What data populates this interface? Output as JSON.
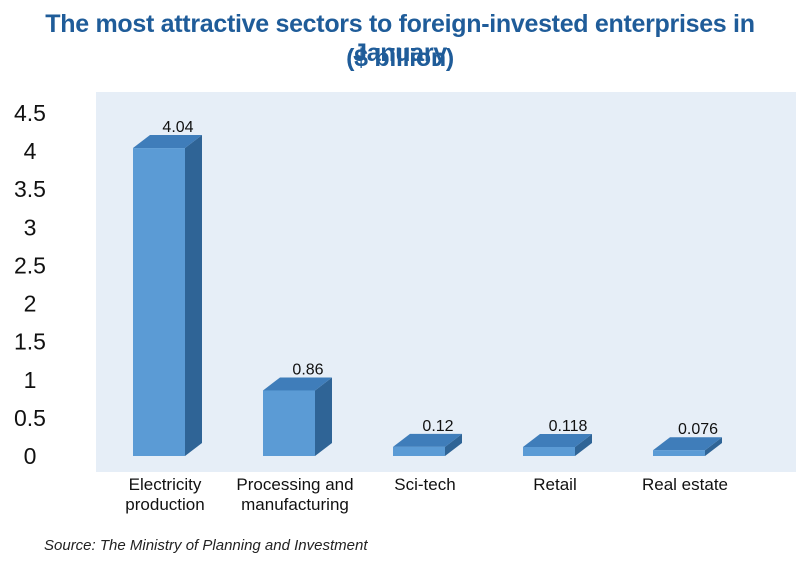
{
  "chart_data": {
    "type": "bar",
    "title": "The most attractive sectors to foreign-invested enterprises in January",
    "subtitle": "($ billion)",
    "categories": [
      "Electricity production",
      "Processing and manufacturing",
      "Sci-tech",
      "Retail",
      "Real estate"
    ],
    "category_lines": [
      [
        "Electricity",
        "production"
      ],
      [
        "Processing and",
        "manufacturing"
      ],
      [
        "Sci-tech"
      ],
      [
        "Retail"
      ],
      [
        "Real estate"
      ]
    ],
    "values": [
      4.04,
      0.86,
      0.12,
      0.118,
      0.076
    ],
    "value_labels": [
      "4.04",
      "0.86",
      "0.12",
      "0.118",
      "0.076"
    ],
    "ylim": [
      0,
      4.5
    ],
    "yticks": [
      "0",
      "0.5",
      "1",
      "1.5",
      "2",
      "2.5",
      "3",
      "3.5",
      "4",
      "4.5"
    ],
    "grid": false,
    "bar_style": "3d",
    "colors": {
      "bar_front": "#5b9bd5",
      "bar_side": "#2f6496",
      "bar_top": "#3f7dba",
      "plot_bg": "#e6eef7",
      "title": "#1f5c99"
    }
  },
  "source": "Source: The Ministry of Planning and Investment"
}
